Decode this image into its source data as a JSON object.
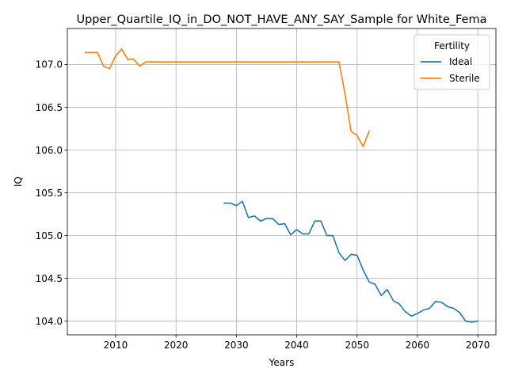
{
  "chart_data": {
    "type": "line",
    "title": "Upper_Quartile_IQ_in_DO_NOT_HAVE_ANY_SAY_Sample for White_Fema",
    "xlabel": "Years",
    "ylabel": "IQ",
    "xlim": [
      2002,
      2073
    ],
    "ylim": [
      103.84,
      107.42
    ],
    "xticks": [
      2010,
      2020,
      2030,
      2040,
      2050,
      2060,
      2070
    ],
    "yticks": [
      104.0,
      104.5,
      105.0,
      105.5,
      106.0,
      106.5,
      107.0
    ],
    "ytick_labels": [
      "104.0",
      "104.5",
      "105.0",
      "105.5",
      "106.0",
      "106.5",
      "107.0"
    ],
    "grid": true,
    "legend": {
      "title": "Fertility",
      "placement": "top-right"
    },
    "series": [
      {
        "name": "Ideal",
        "color": "#1f77b4",
        "points": [
          [
            2028,
            105.38
          ],
          [
            2029,
            105.38
          ],
          [
            2030,
            105.35
          ],
          [
            2031,
            105.4
          ],
          [
            2032,
            105.21
          ],
          [
            2033,
            105.23
          ],
          [
            2034,
            105.17
          ],
          [
            2035,
            105.2
          ],
          [
            2036,
            105.2
          ],
          [
            2037,
            105.13
          ],
          [
            2038,
            105.14
          ],
          [
            2039,
            105.01
          ],
          [
            2040,
            105.07
          ],
          [
            2041,
            105.02
          ],
          [
            2042,
            105.02
          ],
          [
            2043,
            105.17
          ],
          [
            2044,
            105.17
          ],
          [
            2045,
            105.0
          ],
          [
            2046,
            105.0
          ],
          [
            2047,
            104.8
          ],
          [
            2048,
            104.71
          ],
          [
            2049,
            104.78
          ],
          [
            2050,
            104.77
          ],
          [
            2051,
            104.6
          ],
          [
            2052,
            104.46
          ],
          [
            2053,
            104.43
          ],
          [
            2054,
            104.3
          ],
          [
            2055,
            104.37
          ],
          [
            2056,
            104.24
          ],
          [
            2057,
            104.2
          ],
          [
            2058,
            104.11
          ],
          [
            2059,
            104.06
          ],
          [
            2060,
            104.09
          ],
          [
            2061,
            104.13
          ],
          [
            2062,
            104.15
          ],
          [
            2063,
            104.23
          ],
          [
            2064,
            104.22
          ],
          [
            2065,
            104.17
          ],
          [
            2066,
            104.15
          ],
          [
            2067,
            104.1
          ],
          [
            2068,
            104.0
          ],
          [
            2069,
            103.99
          ],
          [
            2070,
            104.0
          ]
        ]
      },
      {
        "name": "Sterile",
        "color": "#ff7f0e",
        "points": [
          [
            2005,
            107.14
          ],
          [
            2006,
            107.14
          ],
          [
            2007,
            107.14
          ],
          [
            2008,
            106.98
          ],
          [
            2009,
            106.95
          ],
          [
            2010,
            107.1
          ],
          [
            2011,
            107.18
          ],
          [
            2012,
            107.06
          ],
          [
            2013,
            107.06
          ],
          [
            2014,
            106.98
          ],
          [
            2015,
            107.03
          ],
          [
            2016,
            107.03
          ],
          [
            2020,
            107.03
          ],
          [
            2025,
            107.03
          ],
          [
            2030,
            107.03
          ],
          [
            2035,
            107.03
          ],
          [
            2040,
            107.03
          ],
          [
            2045,
            107.03
          ],
          [
            2047,
            107.03
          ],
          [
            2048,
            106.66
          ],
          [
            2049,
            106.22
          ],
          [
            2050,
            106.17
          ],
          [
            2051,
            106.04
          ],
          [
            2052,
            106.22
          ]
        ]
      }
    ]
  }
}
